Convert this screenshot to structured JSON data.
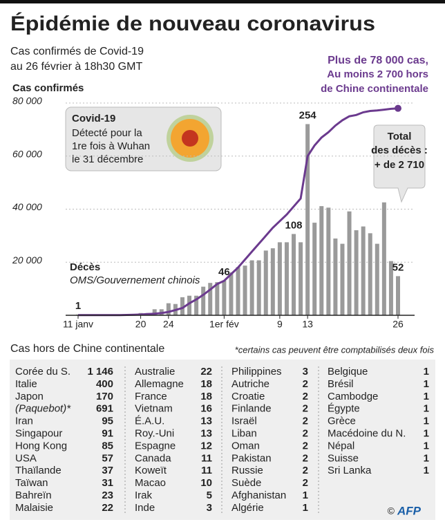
{
  "title": "Épidémie de nouveau coronavirus",
  "subtitle": [
    "Cas confirmés de Covid-19",
    "au 26 février à 18h30 GMT"
  ],
  "chart_data": {
    "type": "bar-line",
    "y_label": "Cas confirmés",
    "categories": [
      "11 janv",
      null,
      null,
      null,
      null,
      null,
      null,
      null,
      null,
      "20",
      null,
      null,
      null,
      "24",
      null,
      null,
      null,
      null,
      null,
      null,
      null,
      "1er fév",
      null,
      null,
      null,
      null,
      null,
      null,
      null,
      "9",
      null,
      null,
      null,
      "13",
      null,
      null,
      null,
      null,
      null,
      null,
      null,
      null,
      null,
      null,
      null,
      null,
      "26"
    ],
    "series": [
      {
        "name": "Cas confirmés",
        "type": "line",
        "color": "#6b3a8e",
        "values": [
          41,
          41,
          41,
          41,
          41,
          45,
          62,
          121,
          198,
          291,
          440,
          571,
          830,
          1287,
          1975,
          2744,
          4515,
          5974,
          7711,
          9692,
          11791,
          13000,
          15500,
          18000,
          21000,
          24000,
          27000,
          30000,
          33000,
          35500,
          38000,
          41000,
          44000,
          60000,
          64000,
          67000,
          69000,
          71500,
          73500,
          75000,
          75500,
          76500,
          77000,
          77200,
          77500,
          77800,
          78000
        ]
      },
      {
        "name": "Décès",
        "type": "bar",
        "axis": "y2",
        "color": "#9a9a9a",
        "values": [
          1,
          0,
          0,
          0,
          0,
          0,
          1,
          0,
          1,
          3,
          3,
          8,
          8,
          16,
          15,
          24,
          26,
          26,
          38,
          43,
          44,
          46,
          57,
          64,
          66,
          73,
          73,
          86,
          89,
          97,
          97,
          108,
          97,
          254,
          123,
          145,
          143,
          102,
          95,
          138,
          113,
          118,
          109,
          95,
          150,
          72,
          52
        ],
        "value_labels": [
          "1",
          null,
          null,
          null,
          null,
          null,
          null,
          null,
          null,
          null,
          null,
          null,
          null,
          null,
          null,
          null,
          null,
          null,
          null,
          null,
          null,
          "46",
          null,
          null,
          null,
          null,
          null,
          null,
          null,
          null,
          null,
          "108",
          null,
          "254",
          null,
          null,
          null,
          null,
          null,
          null,
          null,
          null,
          null,
          null,
          null,
          null,
          "52"
        ]
      }
    ],
    "ylim": [
      0,
      80000
    ],
    "yticks": [
      {
        "value": 20000,
        "label": "20 000"
      },
      {
        "value": 40000,
        "label": "40 000"
      },
      {
        "value": 60000,
        "label": "60 000"
      },
      {
        "value": 80000,
        "label": "80 000"
      }
    ],
    "y2lim": [
      0,
      282
    ],
    "annotations": {
      "cases": [
        "Plus de 78 000 cas,",
        "Au moins 2 700 hors",
        "de Chine continentale"
      ],
      "deaths": [
        "Décès",
        "OMS/Gouvernement chinois"
      ],
      "covid": [
        "Covid-19",
        "Détecté pour la",
        "1re fois à Wuhan",
        "le 31 décembre"
      ],
      "total": [
        "Total",
        "des décès :",
        "+ de 2 710"
      ]
    }
  },
  "table": {
    "title": "Cas hors de Chine continentale",
    "note": "*certains cas peuvent être comptabilisés deux fois",
    "columns": [
      [
        [
          "Corée du S.",
          "1 146"
        ],
        [
          "Italie",
          "400"
        ],
        [
          "Japon",
          "170"
        ],
        [
          "(Paquebot)*",
          "691"
        ],
        [
          "Iran",
          "95"
        ],
        [
          "Singapour",
          "91"
        ],
        [
          "Hong Kong",
          "85"
        ],
        [
          "USA",
          "57"
        ],
        [
          "Thaïlande",
          "37"
        ],
        [
          "Taïwan",
          "31"
        ],
        [
          "Bahreïn",
          "23"
        ],
        [
          "Malaisie",
          "22"
        ]
      ],
      [
        [
          "Australie",
          "22"
        ],
        [
          "Allemagne",
          "18"
        ],
        [
          "France",
          "18"
        ],
        [
          "Vietnam",
          "16"
        ],
        [
          "É.A.U.",
          "13"
        ],
        [
          "Roy.-Uni",
          "13"
        ],
        [
          "Espagne",
          "12"
        ],
        [
          "Canada",
          "11"
        ],
        [
          "Koweït",
          "11"
        ],
        [
          "Macao",
          "10"
        ],
        [
          "Irak",
          "5"
        ],
        [
          "Inde",
          "3"
        ]
      ],
      [
        [
          "Philippines",
          "3"
        ],
        [
          "Autriche",
          "2"
        ],
        [
          "Croatie",
          "2"
        ],
        [
          "Finlande",
          "2"
        ],
        [
          "Israël",
          "2"
        ],
        [
          "Liban",
          "2"
        ],
        [
          "Oman",
          "2"
        ],
        [
          "Pakistan",
          "2"
        ],
        [
          "Russie",
          "2"
        ],
        [
          "Suède",
          "2"
        ],
        [
          "Afghanistan",
          "1"
        ],
        [
          "Algérie",
          "1"
        ]
      ],
      [
        [
          "Belgique",
          "1"
        ],
        [
          "Brésil",
          "1"
        ],
        [
          "Cambodge",
          "1"
        ],
        [
          "Égypte",
          "1"
        ],
        [
          "Grèce",
          "1"
        ],
        [
          "Macédoine du N.",
          "1"
        ],
        [
          "Népal",
          "1"
        ],
        [
          "Suisse",
          "1"
        ],
        [
          "Sri Lanka",
          "1"
        ]
      ]
    ]
  },
  "credit": [
    "©",
    "AFP"
  ]
}
